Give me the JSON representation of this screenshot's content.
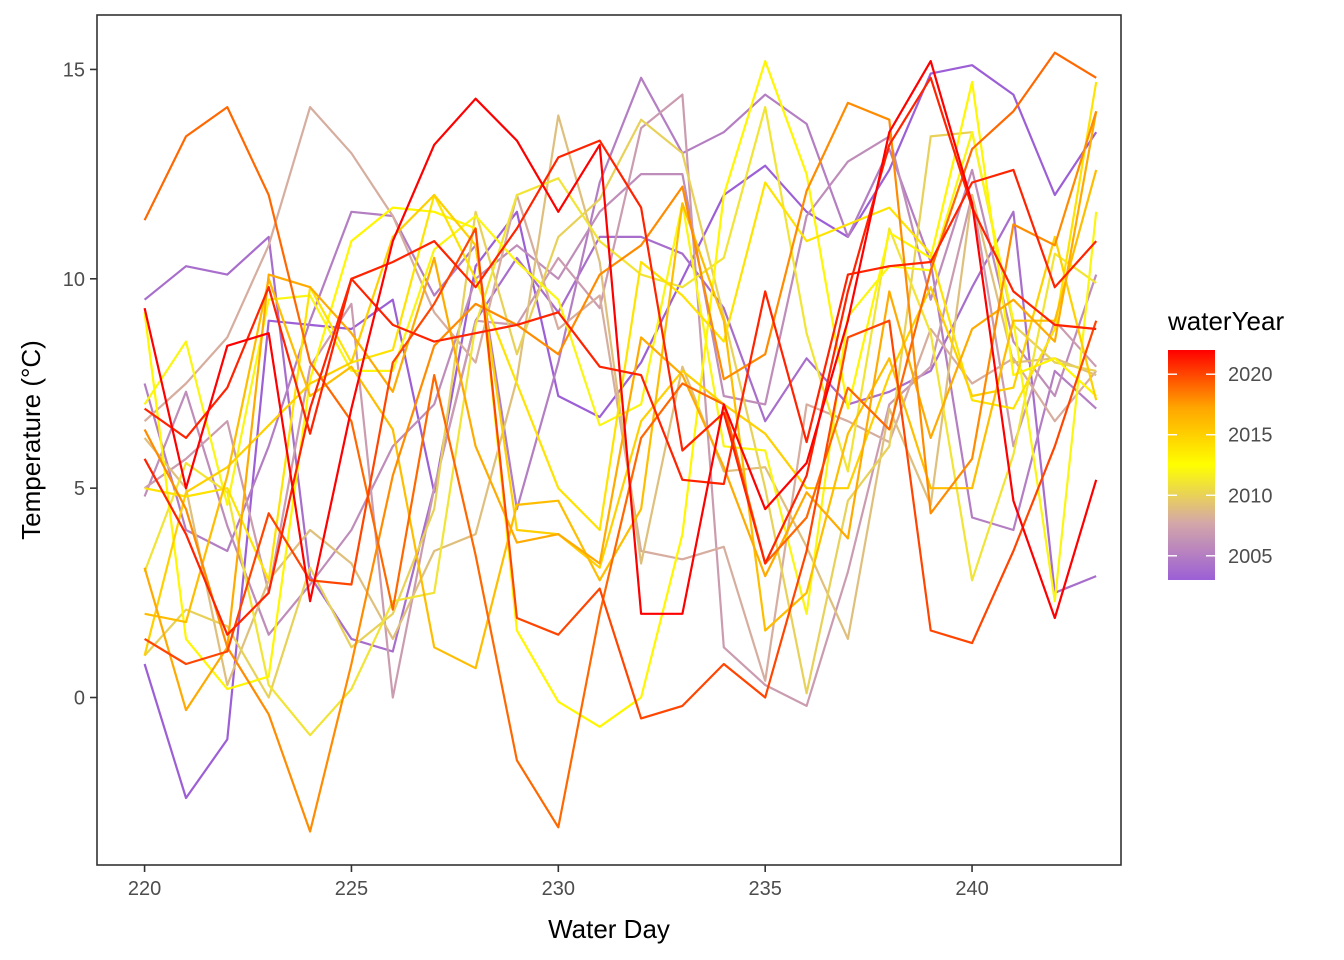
{
  "chart_data": {
    "type": "line",
    "xlabel": "Water Day",
    "ylabel": "Temperature (°C)",
    "xlim": [
      218.85,
      243.6
    ],
    "ylim": [
      -4.0,
      16.3
    ],
    "x_ticks": [
      220,
      225,
      230,
      235,
      240
    ],
    "y_ticks": [
      0,
      5,
      10,
      15
    ],
    "grid": false,
    "legend": {
      "title": "waterYear",
      "position": "right",
      "type": "colorbar",
      "range": [
        2003,
        2022
      ],
      "ticks": [
        2005,
        2010,
        2015,
        2020
      ],
      "gradient": [
        "#9c5fd6",
        "#d4a8a8",
        "#ffff00",
        "#ffa500",
        "#ff0000"
      ]
    },
    "x": [
      220,
      221,
      222,
      223,
      224,
      225,
      226,
      227,
      228,
      229,
      230,
      231,
      232,
      233,
      234,
      235,
      236,
      237,
      238,
      239,
      240,
      241,
      242,
      243
    ],
    "series": [
      {
        "year": 2003,
        "values": [
          0.8,
          -2.4,
          -1.0,
          9.0,
          8.9,
          8.8,
          9.5,
          4.9,
          10.3,
          11.6,
          7.2,
          6.7,
          8.0,
          10.0,
          12.0,
          12.7,
          11.6,
          11.0,
          12.6,
          14.9,
          15.1,
          14.4,
          12.0,
          13.5
        ]
      },
      {
        "year": 2004,
        "values": [
          9.5,
          10.3,
          10.1,
          11.0,
          2.9,
          1.4,
          1.1,
          5.0,
          9.0,
          10.5,
          9.2,
          11.0,
          11.0,
          10.6,
          9.3,
          6.6,
          8.1,
          7.0,
          7.3,
          7.8,
          9.8,
          11.6,
          2.5,
          2.9
        ]
      },
      {
        "year": 2005,
        "values": [
          7.5,
          4.0,
          3.5,
          6.0,
          9.0,
          11.6,
          11.5,
          9.6,
          10.8,
          4.5,
          8.0,
          12.3,
          14.8,
          13.0,
          13.5,
          14.4,
          13.7,
          11.0,
          13.1,
          10.4,
          4.3,
          4.0,
          7.8,
          6.9
        ]
      },
      {
        "year": 2006,
        "values": [
          4.8,
          7.3,
          4.1,
          1.5,
          2.7,
          4.0,
          6.0,
          7.0,
          10.0,
          10.8,
          10.0,
          11.6,
          12.5,
          12.5,
          7.2,
          7.0,
          11.5,
          12.8,
          13.4,
          9.5,
          12.6,
          8.5,
          7.2,
          10.1
        ]
      },
      {
        "year": 2007,
        "values": [
          5.0,
          5.7,
          6.6,
          2.5,
          7.9,
          9.4,
          0.0,
          5.0,
          9.0,
          8.9,
          10.5,
          9.3,
          13.6,
          14.4,
          1.2,
          0.3,
          -0.2,
          3.0,
          7.0,
          7.9,
          12.0,
          6.0,
          9.0,
          7.9
        ]
      },
      {
        "year": 2008,
        "values": [
          6.6,
          7.5,
          8.6,
          10.8,
          14.1,
          13.0,
          11.5,
          9.2,
          8.0,
          12.0,
          8.8,
          9.6,
          3.5,
          3.3,
          3.6,
          0.4,
          7.0,
          6.6,
          6.1,
          8.8,
          7.5,
          8.1,
          6.6,
          7.8
        ]
      },
      {
        "year": 2009,
        "values": [
          6.2,
          5.0,
          0.3,
          2.8,
          4.0,
          3.2,
          1.4,
          3.5,
          3.9,
          7.6,
          13.9,
          10.4,
          3.2,
          7.9,
          5.4,
          5.5,
          3.6,
          1.4,
          6.9,
          4.6,
          12.0,
          8.0,
          8.1,
          7.7
        ]
      },
      {
        "year": 2010,
        "values": [
          1.0,
          2.1,
          1.7,
          0.0,
          3.1,
          1.2,
          2.0,
          4.5,
          11.6,
          8.2,
          11.0,
          11.9,
          13.8,
          13.0,
          9.1,
          5.0,
          0.1,
          4.7,
          6.0,
          13.4,
          13.5,
          8.9,
          8.0,
          7.8
        ]
      },
      {
        "year": 2011,
        "values": [
          3.0,
          5.6,
          4.9,
          0.3,
          -0.9,
          0.2,
          2.3,
          2.5,
          8.9,
          12.0,
          12.4,
          10.9,
          10.1,
          9.8,
          10.5,
          14.1,
          8.7,
          5.4,
          11.2,
          8.7,
          2.8,
          5.8,
          10.6,
          9.9
        ]
      },
      {
        "year": 2012,
        "values": [
          7.0,
          8.5,
          4.6,
          9.5,
          9.6,
          7.8,
          7.8,
          10.7,
          11.5,
          10.4,
          9.5,
          6.5,
          7.0,
          11.8,
          6.0,
          5.9,
          2.0,
          9.1,
          10.3,
          10.2,
          13.5,
          9.0,
          2.3,
          11.6
        ]
      },
      {
        "year": 2013,
        "values": [
          9.2,
          1.4,
          0.2,
          0.5,
          7.6,
          10.9,
          11.7,
          11.6,
          11.2,
          1.6,
          -0.1,
          -0.7,
          0.0,
          3.9,
          12.0,
          15.2,
          12.5,
          6.9,
          11.1,
          10.5,
          14.7,
          7.7,
          8.1,
          7.2
        ]
      },
      {
        "year": 2014,
        "values": [
          5.0,
          4.8,
          5.0,
          2.8,
          9.8,
          8.0,
          8.3,
          12.0,
          10.0,
          7.5,
          5.0,
          4.0,
          10.4,
          9.6,
          8.5,
          12.3,
          10.9,
          11.3,
          11.7,
          10.6,
          7.1,
          6.9,
          8.8,
          14.7
        ]
      },
      {
        "year": 2015,
        "values": [
          1.0,
          4.9,
          5.5,
          6.5,
          7.5,
          8.0,
          11.0,
          12.0,
          10.8,
          4.0,
          3.9,
          3.1,
          6.6,
          7.8,
          7.0,
          6.3,
          5.0,
          5.0,
          7.7,
          9.8,
          7.2,
          7.4,
          11.0,
          7.1
        ]
      },
      {
        "year": 2016,
        "values": [
          2.0,
          1.8,
          5.3,
          10.0,
          7.2,
          7.9,
          6.4,
          1.2,
          0.7,
          4.6,
          4.7,
          2.8,
          4.5,
          11.8,
          9.0,
          1.6,
          2.5,
          6.3,
          8.1,
          5.0,
          5.0,
          9.0,
          9.0,
          12.6
        ]
      },
      {
        "year": 2017,
        "values": [
          3.1,
          -0.3,
          1.2,
          10.1,
          9.8,
          8.7,
          7.3,
          10.5,
          6.0,
          3.7,
          3.9,
          3.2,
          8.6,
          7.7,
          5.5,
          2.9,
          4.9,
          3.8,
          9.7,
          6.2,
          8.8,
          9.5,
          8.5,
          14.0
        ]
      },
      {
        "year": 2018,
        "values": [
          6.4,
          4.5,
          1.2,
          -0.4,
          -3.2,
          0.8,
          5.3,
          8.4,
          9.4,
          8.9,
          8.2,
          10.1,
          10.8,
          12.2,
          7.6,
          8.2,
          12.1,
          14.2,
          13.8,
          4.4,
          5.7,
          11.3,
          10.8,
          14.0
        ]
      },
      {
        "year": 2019,
        "values": [
          11.4,
          13.4,
          14.1,
          12.0,
          8.0,
          6.6,
          2.1,
          7.7,
          3.4,
          -1.5,
          -3.1,
          2.0,
          6.2,
          7.5,
          7.0,
          3.2,
          4.3,
          7.4,
          6.4,
          10.2,
          13.1,
          14.0,
          15.4,
          14.8
        ]
      },
      {
        "year": 2020,
        "values": [
          1.4,
          0.8,
          1.1,
          4.4,
          2.8,
          2.7,
          8.0,
          9.4,
          11.2,
          1.9,
          1.5,
          2.6,
          -0.5,
          -0.2,
          0.8,
          0.0,
          3.5,
          8.6,
          9.0,
          1.6,
          1.3,
          3.5,
          6.0,
          9.0
        ]
      },
      {
        "year": 2021,
        "values": [
          6.9,
          6.2,
          7.4,
          9.8,
          6.3,
          10.0,
          8.9,
          8.5,
          8.7,
          8.9,
          9.2,
          7.9,
          7.7,
          5.2,
          5.1,
          9.7,
          6.1,
          10.1,
          10.3,
          10.4,
          12.3,
          12.6,
          9.8,
          10.9
        ]
      },
      {
        "year": 2021,
        "values": [
          5.7,
          3.9,
          1.5,
          2.5,
          6.9,
          10.0,
          10.4,
          10.9,
          9.8,
          11.2,
          12.9,
          13.3,
          11.7,
          5.9,
          6.8,
          3.2,
          5.3,
          9.7,
          13.2,
          14.8,
          11.7,
          9.7,
          8.9,
          8.8
        ]
      },
      {
        "year": 2022,
        "values": [
          9.3,
          5.0,
          8.4,
          8.7,
          2.3,
          6.9,
          10.9,
          13.2,
          14.3,
          13.3,
          11.6,
          13.2,
          2.0,
          2.0,
          7.0,
          4.5,
          5.6,
          9.0,
          13.5,
          15.2,
          11.8,
          4.7,
          1.9,
          5.2
        ]
      }
    ]
  }
}
